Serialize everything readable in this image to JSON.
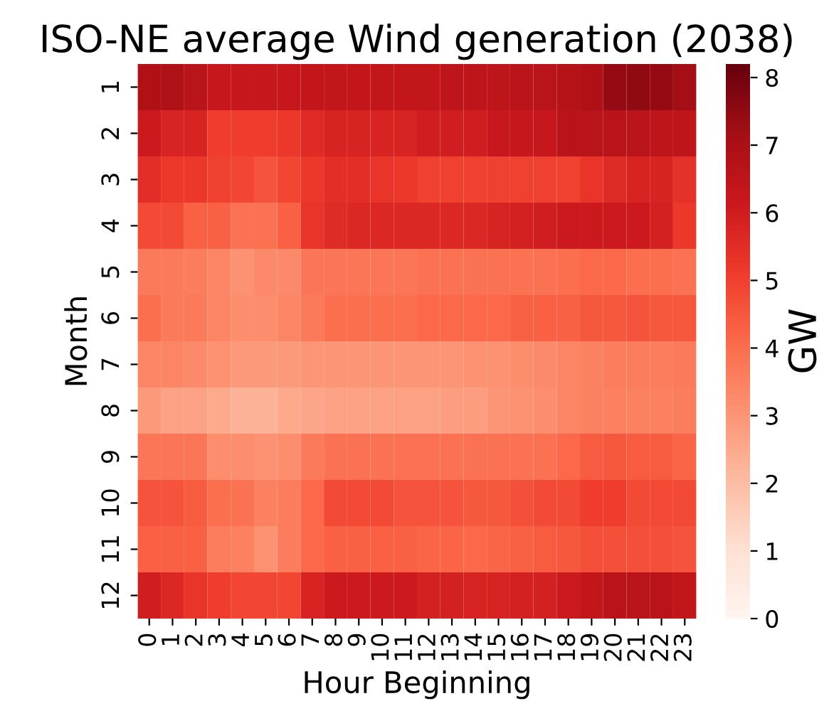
{
  "chart_data": {
    "type": "heatmap",
    "title": "ISO-NE average Wind generation (2038)",
    "xlabel": "Hour Beginning",
    "ylabel": "Month",
    "clabel": "GW",
    "categories": [
      "0",
      "1",
      "2",
      "3",
      "4",
      "5",
      "6",
      "7",
      "8",
      "9",
      "10",
      "11",
      "12",
      "13",
      "14",
      "15",
      "16",
      "17",
      "18",
      "19",
      "20",
      "21",
      "22",
      "23"
    ],
    "y_categories": [
      "1",
      "2",
      "3",
      "4",
      "5",
      "6",
      "7",
      "8",
      "9",
      "10",
      "11",
      "12"
    ],
    "cells": [
      [
        6.9,
        6.9,
        6.6,
        6.3,
        6.3,
        6.3,
        6.3,
        6.4,
        6.4,
        6.4,
        6.4,
        6.4,
        6.4,
        6.5,
        6.5,
        6.5,
        6.6,
        6.6,
        6.7,
        6.9,
        7.4,
        7.5,
        7.4,
        7.2
      ],
      [
        6.1,
        5.8,
        5.8,
        5.1,
        5.1,
        5.1,
        5.2,
        5.6,
        5.8,
        5.8,
        5.8,
        5.8,
        6.0,
        6.0,
        6.0,
        6.2,
        6.3,
        6.3,
        6.6,
        6.6,
        6.6,
        6.6,
        6.5,
        6.5
      ],
      [
        5.5,
        5.2,
        5.2,
        5.0,
        4.9,
        4.6,
        4.9,
        5.2,
        5.5,
        5.5,
        5.3,
        5.2,
        5.0,
        5.0,
        5.0,
        5.0,
        5.0,
        5.0,
        5.0,
        5.3,
        5.6,
        5.8,
        5.8,
        5.4
      ],
      [
        4.8,
        4.8,
        4.3,
        4.3,
        3.9,
        3.9,
        4.3,
        5.3,
        5.6,
        5.7,
        5.7,
        5.7,
        5.7,
        5.7,
        5.7,
        5.8,
        5.9,
        6.0,
        6.1,
        6.1,
        6.1,
        6.1,
        5.9,
        5.2
      ],
      [
        3.7,
        3.7,
        3.6,
        3.4,
        3.1,
        3.3,
        3.3,
        3.8,
        3.8,
        3.8,
        3.8,
        3.8,
        3.9,
        3.9,
        3.9,
        3.9,
        3.9,
        3.9,
        4.0,
        4.1,
        4.1,
        4.0,
        4.0,
        3.9
      ],
      [
        4.0,
        3.7,
        3.7,
        3.4,
        3.2,
        3.2,
        3.4,
        3.7,
        4.0,
        4.0,
        4.0,
        4.0,
        4.1,
        4.1,
        4.1,
        4.1,
        4.3,
        4.3,
        4.3,
        4.5,
        4.5,
        4.6,
        4.5,
        4.5
      ],
      [
        3.4,
        3.4,
        3.3,
        3.1,
        2.9,
        2.9,
        2.9,
        3.0,
        3.0,
        3.0,
        3.0,
        3.0,
        3.0,
        3.0,
        3.1,
        3.1,
        3.2,
        3.3,
        3.4,
        3.5,
        3.6,
        3.6,
        3.6,
        3.7
      ],
      [
        2.9,
        2.7,
        2.7,
        2.5,
        2.3,
        2.3,
        2.5,
        2.6,
        2.7,
        2.7,
        2.7,
        2.7,
        2.7,
        2.8,
        2.8,
        3.0,
        3.1,
        3.2,
        3.4,
        3.5,
        3.5,
        3.5,
        3.5,
        3.6
      ],
      [
        3.8,
        3.8,
        3.8,
        3.2,
        3.2,
        3.1,
        3.2,
        3.7,
        3.9,
        3.9,
        3.9,
        3.9,
        3.9,
        3.9,
        3.9,
        3.9,
        3.9,
        3.9,
        4.1,
        4.4,
        4.5,
        4.4,
        4.4,
        4.2
      ],
      [
        4.6,
        4.6,
        4.4,
        4.0,
        3.9,
        3.5,
        3.6,
        4.1,
        4.8,
        4.8,
        4.8,
        4.6,
        4.6,
        4.6,
        4.5,
        4.5,
        4.7,
        4.8,
        4.8,
        5.1,
        5.1,
        4.8,
        4.8,
        4.8
      ],
      [
        4.3,
        4.3,
        4.3,
        3.6,
        3.5,
        3.1,
        3.6,
        4.1,
        4.3,
        4.3,
        4.3,
        4.3,
        4.2,
        4.2,
        4.1,
        4.2,
        4.3,
        4.4,
        4.5,
        4.7,
        4.7,
        4.7,
        4.7,
        4.6
      ],
      [
        6.0,
        5.7,
        5.3,
        5.1,
        4.9,
        4.9,
        4.9,
        5.8,
        6.1,
        6.1,
        6.1,
        6.1,
        5.9,
        5.9,
        5.8,
        5.8,
        5.9,
        5.9,
        6.1,
        6.4,
        6.6,
        6.6,
        6.6,
        6.4
      ]
    ],
    "clim": [
      0,
      8.2
    ],
    "cticks": [
      0,
      1,
      2,
      3,
      4,
      5,
      6,
      7,
      8
    ]
  }
}
